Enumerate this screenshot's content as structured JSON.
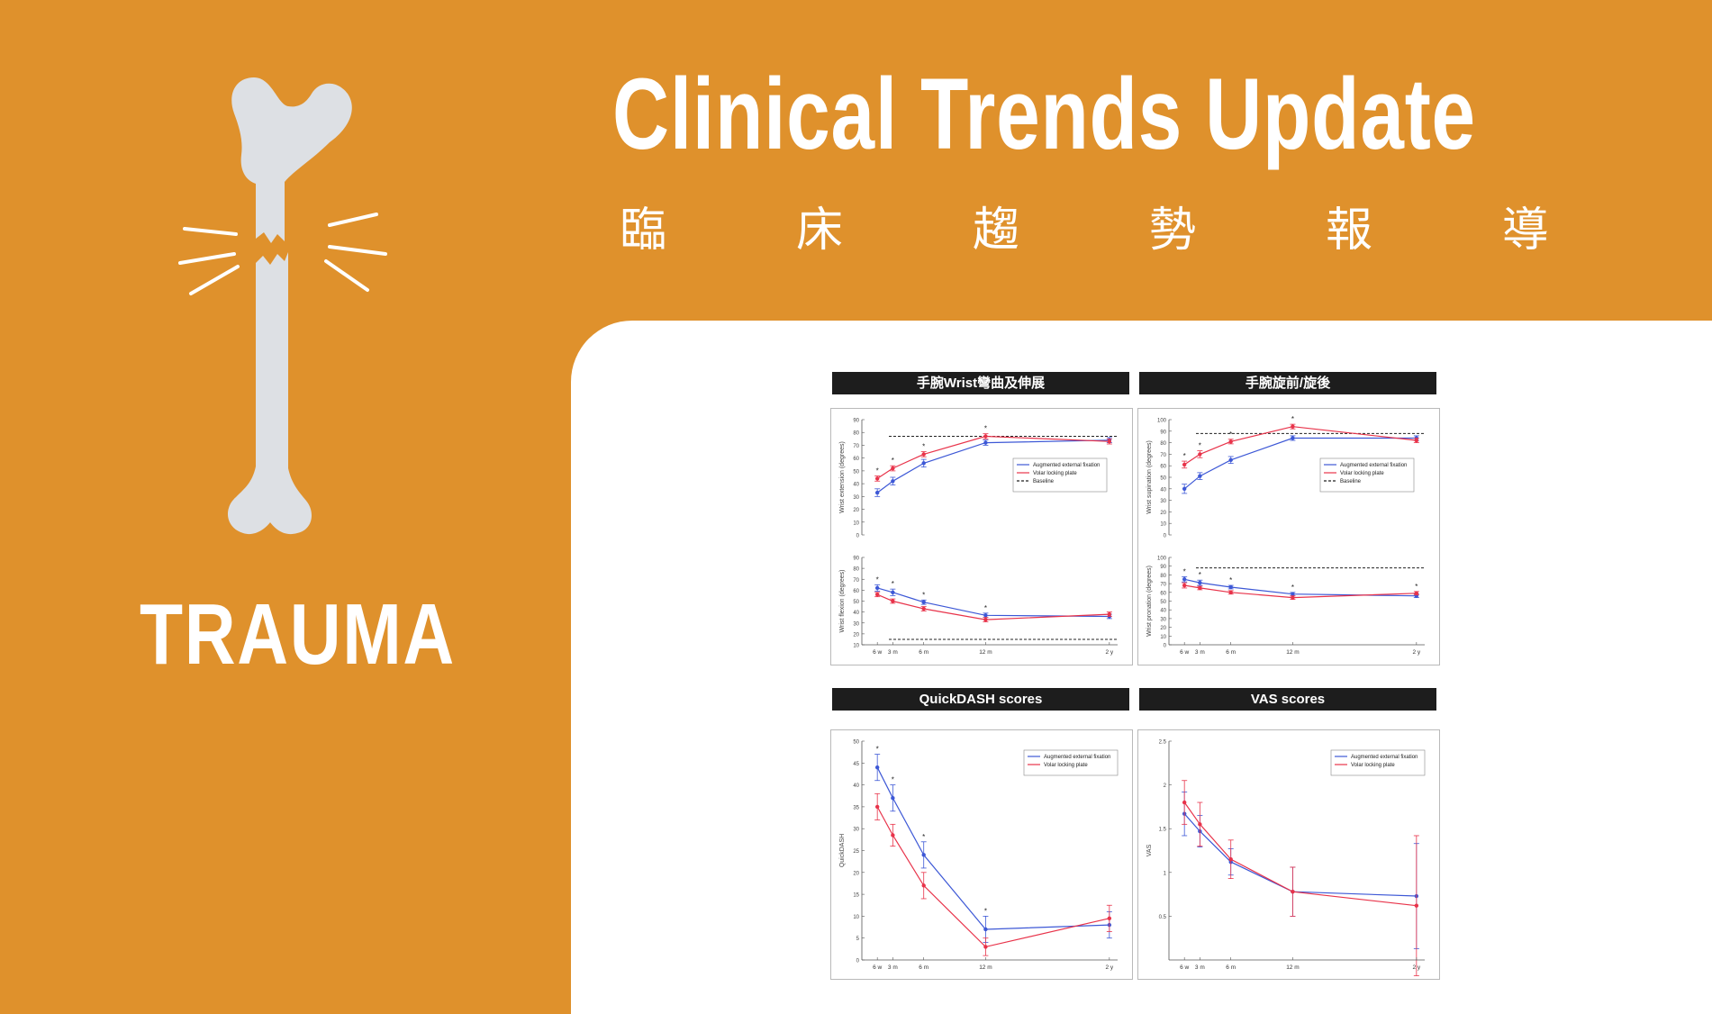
{
  "header": {
    "title_en": "Clinical Trends Update",
    "title_zh_chars": [
      "臨",
      "床",
      "趨",
      "勢",
      "報",
      "導"
    ]
  },
  "sidebar": {
    "label": "TRAUMA",
    "icon": "broken-bone-icon"
  },
  "colors": {
    "background": "#df912c",
    "panel": "#ffffff",
    "bone": "#dde0e4",
    "header_bar": "#1d1d1d",
    "series_blue": "#3d58d6",
    "series_red": "#e8334a"
  },
  "panels": [
    {
      "id": "wrist-flexion",
      "header": "手腕Wrist彎曲及伸展"
    },
    {
      "id": "wrist-rotation",
      "header": "手腕旋前/旋後"
    },
    {
      "id": "quickdash",
      "header": "QuickDASH scores"
    },
    {
      "id": "vas",
      "header": "VAS scores"
    }
  ],
  "chart_data": [
    {
      "type": "line",
      "title": "手腕Wrist彎曲及伸展",
      "x": [
        "6 w",
        "3 m",
        "6 m",
        "12 m",
        "2 y"
      ],
      "x_positions_months": [
        1.5,
        3,
        6,
        12,
        24
      ],
      "subplots": [
        {
          "ylabel": "Wrist extension (degrees)",
          "ylim": [
            0,
            90
          ],
          "yticks": [
            0,
            10,
            20,
            30,
            40,
            50,
            60,
            70,
            80,
            90
          ],
          "baseline": 77,
          "series": [
            {
              "name": "Augmented external fixation",
              "values": [
                33,
                42,
                56,
                72,
                74
              ],
              "errors": [
                3,
                3,
                3,
                2,
                2
              ]
            },
            {
              "name": "Volar locking plate",
              "values": [
                44,
                52,
                63,
                77,
                73
              ],
              "errors": [
                2,
                2,
                2,
                2,
                2
              ]
            }
          ],
          "significance": [
            "*",
            "*",
            "*",
            "*",
            ""
          ]
        },
        {
          "ylabel": "Wrist flexion (degrees)",
          "ylim": [
            10,
            90
          ],
          "yticks": [
            10,
            20,
            30,
            40,
            50,
            60,
            70,
            80,
            90
          ],
          "baseline": 15,
          "series": [
            {
              "name": "Augmented external fixation",
              "values": [
                62,
                58,
                49,
                37,
                36
              ],
              "errors": [
                3,
                3,
                2,
                2,
                2
              ]
            },
            {
              "name": "Volar locking plate",
              "values": [
                56,
                50,
                43,
                33,
                38
              ],
              "errors": [
                2,
                2,
                2,
                2,
                2
              ]
            }
          ],
          "significance": [
            "*",
            "*",
            "*",
            "*",
            ""
          ]
        }
      ],
      "legend": [
        "Augmented external fixation",
        "Volar locking plate",
        "Baseline"
      ],
      "legend_position": "right"
    },
    {
      "type": "line",
      "title": "手腕旋前/旋後",
      "x": [
        "6 w",
        "3 m",
        "6 m",
        "12 m",
        "2 y"
      ],
      "x_positions_months": [
        1.5,
        3,
        6,
        12,
        24
      ],
      "subplots": [
        {
          "ylabel": "Wrist supination (degrees)",
          "ylim": [
            0,
            100
          ],
          "yticks": [
            0,
            10,
            20,
            30,
            40,
            50,
            60,
            70,
            80,
            90,
            100
          ],
          "baseline": 88,
          "series": [
            {
              "name": "Augmented external fixation",
              "values": [
                40,
                51,
                65,
                84,
                84
              ],
              "errors": [
                4,
                3,
                3,
                2,
                2
              ]
            },
            {
              "name": "Volar locking plate",
              "values": [
                61,
                70,
                81,
                94,
                82
              ],
              "errors": [
                3,
                3,
                2,
                2,
                2
              ]
            }
          ],
          "significance": [
            "*",
            "*",
            "*",
            "*",
            ""
          ]
        },
        {
          "ylabel": "Wrist pronation (degrees)",
          "ylim": [
            0,
            100
          ],
          "yticks": [
            0,
            10,
            20,
            30,
            40,
            50,
            60,
            70,
            80,
            90,
            100
          ],
          "baseline": 88,
          "series": [
            {
              "name": "Augmented external fixation",
              "values": [
                75,
                71,
                66,
                58,
                56
              ],
              "errors": [
                3,
                3,
                2,
                2,
                2
              ]
            },
            {
              "name": "Volar locking plate",
              "values": [
                68,
                65,
                60,
                54,
                59
              ],
              "errors": [
                3,
                2,
                2,
                2,
                2
              ]
            }
          ],
          "significance": [
            "*",
            "*",
            "*",
            "*",
            "*"
          ]
        }
      ],
      "legend": [
        "Augmented external fixation",
        "Volar locking plate",
        "Baseline"
      ],
      "legend_position": "right"
    },
    {
      "type": "line",
      "title": "QuickDASH scores",
      "ylabel": "QuickDASH",
      "x": [
        "6 w",
        "3 m",
        "6 m",
        "12 m",
        "2 y"
      ],
      "x_positions_months": [
        1.5,
        3,
        6,
        12,
        24
      ],
      "ylim": [
        0,
        50
      ],
      "yticks": [
        0,
        5,
        10,
        15,
        20,
        25,
        30,
        35,
        40,
        45,
        50
      ],
      "series": [
        {
          "name": "Augmented external fixation",
          "values": [
            44,
            37,
            24,
            7,
            8
          ],
          "errors": [
            3,
            3,
            3,
            3,
            3
          ]
        },
        {
          "name": "Volar locking plate",
          "values": [
            35,
            28.5,
            17,
            3,
            9.5
          ],
          "errors": [
            3,
            2.5,
            3,
            2,
            3
          ]
        }
      ],
      "significance": [
        "*",
        "*",
        "*",
        "*",
        ""
      ],
      "legend": [
        "Augmented external fixation",
        "Volar locking plate"
      ],
      "legend_position": "top-right"
    },
    {
      "type": "line",
      "title": "VAS scores",
      "ylabel": "VAS",
      "x": [
        "6 w",
        "3 m",
        "6 m",
        "12 m",
        "2 y"
      ],
      "x_positions_months": [
        1.5,
        3,
        6,
        12,
        24
      ],
      "ylim": [
        0,
        2.5
      ],
      "yticks": [
        0.5,
        1.0,
        1.5,
        2.0,
        2.5
      ],
      "series": [
        {
          "name": "Augmented external fixation",
          "values": [
            1.67,
            1.47,
            1.12,
            0.78,
            0.73
          ],
          "errors": [
            0.25,
            0.18,
            0.15,
            0.28,
            0.6
          ]
        },
        {
          "name": "Volar locking plate",
          "values": [
            1.8,
            1.55,
            1.15,
            0.78,
            0.62
          ],
          "errors": [
            0.25,
            0.25,
            0.22,
            0.28,
            0.8
          ]
        }
      ],
      "legend": [
        "Augmented external fixation",
        "Volar locking plate"
      ],
      "legend_position": "top-right"
    }
  ]
}
